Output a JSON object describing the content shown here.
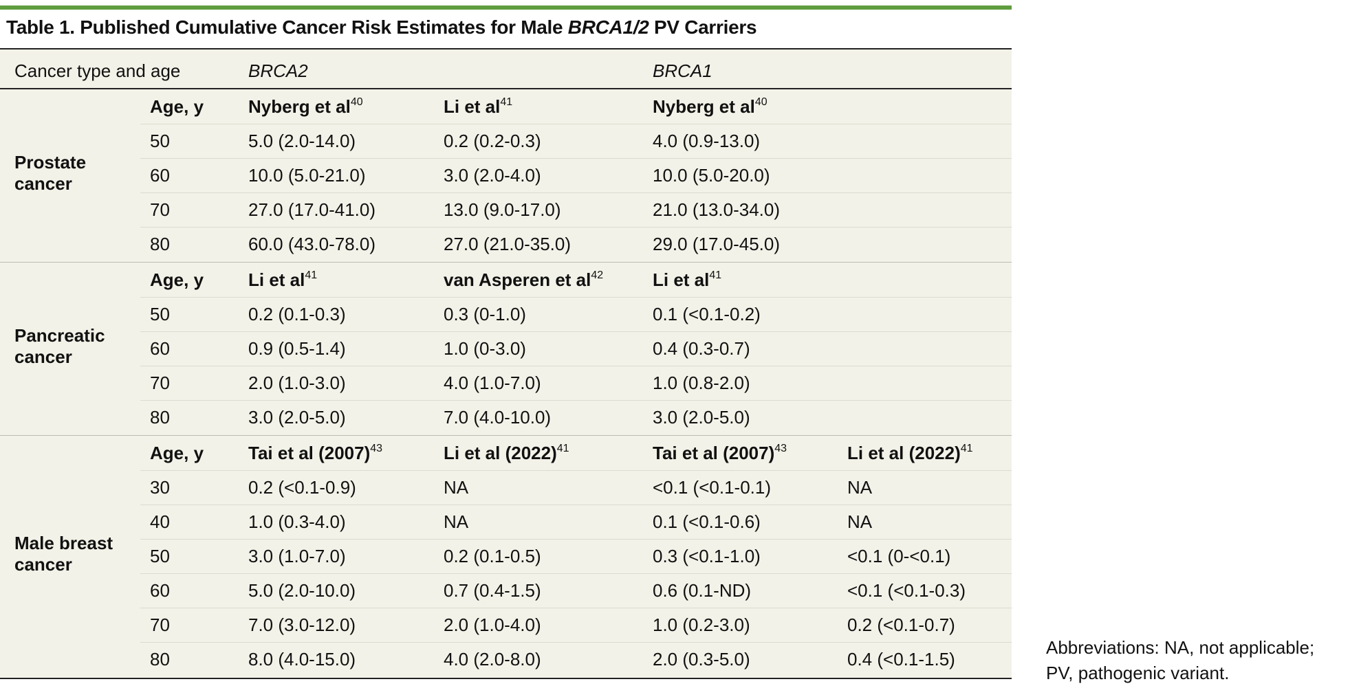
{
  "title": {
    "prefix": "Table 1. Published Cumulative Cancer Risk Estimates for Male ",
    "gene": "BRCA1/2",
    "suffix": " PV Carriers"
  },
  "header": {
    "col1": "Cancer type and age",
    "brca2": "BRCA2",
    "brca1": "BRCA1"
  },
  "groups": [
    {
      "label_line1": "Prostate",
      "label_line2": "cancer",
      "sub": {
        "age": "Age, y",
        "c1": "Nyberg et al",
        "c1sup": "40",
        "c2": "Li et al",
        "c2sup": "41",
        "c3": "Nyberg et al",
        "c3sup": "40",
        "c4": "",
        "c4sup": ""
      },
      "rows": [
        {
          "age": "50",
          "c1": "5.0 (2.0-14.0)",
          "c2": "0.2 (0.2-0.3)",
          "c3": "4.0 (0.9-13.0)",
          "c4": ""
        },
        {
          "age": "60",
          "c1": "10.0 (5.0-21.0)",
          "c2": "3.0 (2.0-4.0)",
          "c3": "10.0 (5.0-20.0)",
          "c4": ""
        },
        {
          "age": "70",
          "c1": "27.0 (17.0-41.0)",
          "c2": "13.0 (9.0-17.0)",
          "c3": "21.0 (13.0-34.0)",
          "c4": ""
        },
        {
          "age": "80",
          "c1": "60.0 (43.0-78.0)",
          "c2": "27.0 (21.0-35.0)",
          "c3": "29.0 (17.0-45.0)",
          "c4": ""
        }
      ]
    },
    {
      "label_line1": "Pancreatic",
      "label_line2": "cancer",
      "sub": {
        "age": "Age, y",
        "c1": "Li et al",
        "c1sup": "41",
        "c2": "van Asperen et al",
        "c2sup": "42",
        "c3": "Li et al",
        "c3sup": "41",
        "c4": "",
        "c4sup": ""
      },
      "rows": [
        {
          "age": "50",
          "c1": "0.2 (0.1-0.3)",
          "c2": "0.3 (0-1.0)",
          "c3": "0.1 (<0.1-0.2)",
          "c4": ""
        },
        {
          "age": "60",
          "c1": "0.9 (0.5-1.4)",
          "c2": "1.0 (0-3.0)",
          "c3": "0.4 (0.3-0.7)",
          "c4": ""
        },
        {
          "age": "70",
          "c1": "2.0 (1.0-3.0)",
          "c2": "4.0 (1.0-7.0)",
          "c3": "1.0 (0.8-2.0)",
          "c4": ""
        },
        {
          "age": "80",
          "c1": "3.0 (2.0-5.0)",
          "c2": "7.0 (4.0-10.0)",
          "c3": "3.0 (2.0-5.0)",
          "c4": ""
        }
      ]
    },
    {
      "label_line1": "Male breast",
      "label_line2": "cancer",
      "sub": {
        "age": "Age, y",
        "c1": "Tai et al (2007)",
        "c1sup": "43",
        "c2": "Li et al (2022)",
        "c2sup": "41",
        "c3": "Tai et al (2007)",
        "c3sup": "43",
        "c4": "Li et al (2022)",
        "c4sup": "41"
      },
      "rows": [
        {
          "age": "30",
          "c1": "0.2 (<0.1-0.9)",
          "c2": "NA",
          "c3": "<0.1 (<0.1-0.1)",
          "c4": "NA"
        },
        {
          "age": "40",
          "c1": "1.0 (0.3-4.0)",
          "c2": "NA",
          "c3": "0.1 (<0.1-0.6)",
          "c4": "NA"
        },
        {
          "age": "50",
          "c1": "3.0 (1.0-7.0)",
          "c2": "0.2 (0.1-0.5)",
          "c3": "0.3 (<0.1-1.0)",
          "c4": "<0.1 (0-<0.1)"
        },
        {
          "age": "60",
          "c1": "5.0 (2.0-10.0)",
          "c2": "0.7 (0.4-1.5)",
          "c3": "0.6 (0.1-ND)",
          "c4": "<0.1 (<0.1-0.3)"
        },
        {
          "age": "70",
          "c1": "7.0 (3.0-12.0)",
          "c2": "2.0 (1.0-4.0)",
          "c3": "1.0 (0.2-3.0)",
          "c4": "0.2 (<0.1-0.7)"
        },
        {
          "age": "80",
          "c1": "8.0 (4.0-15.0)",
          "c2": "4.0 (2.0-8.0)",
          "c3": "2.0 (0.3-5.0)",
          "c4": "0.4 (<0.1-1.5)"
        }
      ]
    }
  ],
  "footnote": {
    "line1": "Abbreviations: NA, not applicable;",
    "line2": "PV, pathogenic variant."
  }
}
